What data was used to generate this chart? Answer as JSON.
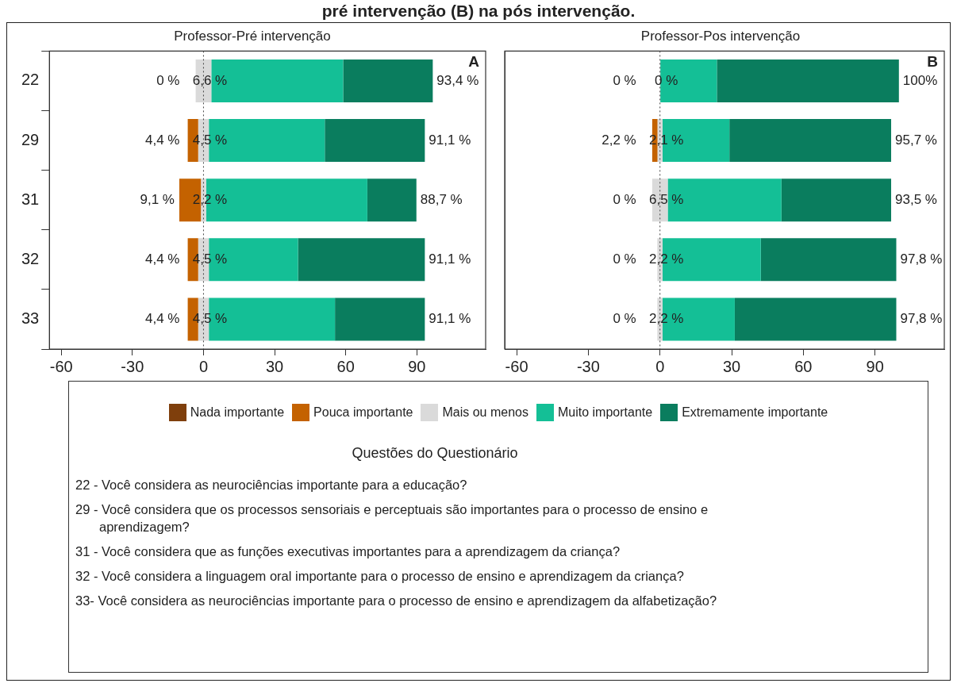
{
  "chart_data": [
    {
      "type": "bar",
      "orientation": "horizontal",
      "title": "Professor-Pré intervenção",
      "categories": [
        "22",
        "29",
        "31",
        "32",
        "33"
      ],
      "xlim": [
        -65,
        119
      ],
      "xticks": [
        -60,
        -30,
        0,
        30,
        60,
        90
      ],
      "legend": "bottom",
      "ref_lines": [
        {
          "axis": "x",
          "value": 0,
          "line_style": "dotted"
        }
      ],
      "series": [
        {
          "name": "Nada importante",
          "color": "#7f3f0c",
          "values": [
            0,
            0,
            0,
            0,
            0
          ]
        },
        {
          "name": "Pouca importante",
          "color": "#c46200",
          "base": [
            null,
            -6.65,
            -10.2,
            -6.65,
            -6.65
          ],
          "values": [
            0,
            4.4,
            9.1,
            4.4,
            4.4
          ],
          "value_labels": [
            "0 %",
            "4,4 %",
            "9,1 %",
            "4,4 %",
            "4,4 %"
          ]
        },
        {
          "name": "Mais ou menos",
          "color": "#dadada",
          "base": [
            -3.3,
            -2.25,
            -1.1,
            -2.25,
            -2.25
          ],
          "values": [
            6.6,
            4.5,
            2.2,
            4.5,
            4.5
          ],
          "value_labels": [
            "6,6 %",
            "4,5 %",
            "2,2 %",
            "4,5 %",
            "4,5 %"
          ]
        },
        {
          "name": "Muito importante",
          "color": "#14bf96",
          "base": [
            3.3,
            2.25,
            1.1,
            2.25,
            2.25
          ],
          "values": [
            55.6,
            48.9,
            68.0,
            37.6,
            53.2
          ]
        },
        {
          "name": "Extremamente importante",
          "color": "#0a7d5e",
          "base": [
            58.9,
            51.15,
            69.1,
            39.85,
            55.45
          ],
          "values": [
            37.8,
            42.2,
            20.7,
            53.5,
            37.9
          ]
        }
      ],
      "annotations": [
        "pré intervenção (B) na pós intervenção.",
        "A",
        "Questões do Questionário",
        "22 - Você considera as neurociências importante para a educação?",
        "29 - Você considera que os processos sensoriais e perceptuais são importantes para o processo de ensino e aprendizagem?",
        "31 - Você considera que as funções executivas importantes para a aprendizagem da criança?",
        "32 - Você considera a linguagem oral importante para o processo de ensino e aprendizagem da criança?",
        "33- Você considera as neurociências importante para o processo de ensino e aprendizagem da alfabetização?",
        {
          "text": "93,4 %",
          "x": 96.7,
          "y": "22"
        },
        {
          "text": "91,1 %",
          "x": 93.35,
          "y": "29"
        },
        {
          "text": "88,7 %",
          "x": 89.8,
          "y": "31"
        },
        {
          "text": "91,1 %",
          "x": 93.35,
          "y": "32"
        },
        {
          "text": "91,1 %",
          "x": 93.35,
          "y": "33"
        }
      ]
    },
    {
      "type": "bar",
      "orientation": "horizontal",
      "title": "Professor-Pos intervenção",
      "categories": [
        "22",
        "29",
        "31",
        "32",
        "33"
      ],
      "tick_labels": "x",
      "xlim": [
        -65,
        119
      ],
      "xticks": [
        -60,
        -30,
        0,
        30,
        60,
        90
      ],
      "ref_lines": [
        {
          "axis": "x",
          "value": 0,
          "line_style": "dotted"
        }
      ],
      "series": [
        {
          "color": "#7f3f0c",
          "values": [
            0,
            0,
            0,
            0,
            0
          ]
        },
        {
          "color": "#c46200",
          "base": [
            null,
            -3.25,
            null,
            null,
            null
          ],
          "values": [
            0,
            2.2,
            0,
            0,
            0
          ],
          "value_labels": [
            "0 %",
            "2,2 %",
            "0 %",
            "0 %",
            "0 %"
          ]
        },
        {
          "color": "#dadada",
          "base": [
            null,
            -1.05,
            -3.25,
            -1.1,
            -1.1
          ],
          "values": [
            0,
            2.1,
            6.5,
            2.2,
            2.2
          ],
          "value_labels": [
            "0 %",
            "2,1 %",
            "6,5 %",
            "2,2 %",
            "2,2 %"
          ]
        },
        {
          "color": "#14bf96",
          "base": [
            0,
            1.05,
            3.25,
            1.1,
            1.1
          ],
          "values": [
            23.8,
            28.0,
            47.6,
            41.1,
            30.2
          ]
        },
        {
          "color": "#0a7d5e",
          "base": [
            23.8,
            29.05,
            50.85,
            42.2,
            31.3
          ],
          "values": [
            76.2,
            67.7,
            45.9,
            56.7,
            67.6
          ]
        }
      ],
      "annotations": [
        "B",
        {
          "text": "100%",
          "x": 100,
          "y": "22"
        },
        {
          "text": "95,7 %",
          "x": 96.75,
          "y": "29"
        },
        {
          "text": "93,5 %",
          "x": 96.75,
          "y": "31"
        },
        {
          "text": "97,8 %",
          "x": 98.9,
          "y": "32"
        },
        {
          "text": "97,8 %",
          "x": 98.9,
          "y": "33"
        }
      ]
    }
  ]
}
